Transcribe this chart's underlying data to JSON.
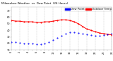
{
  "title_left": "Milwaukee Weather",
  "title_mid": "Outdoor Temp",
  "title_sep": "vs",
  "title_right": "Dew Point",
  "title_sub": "(24 Hours)",
  "bg_color": "#ffffff",
  "temp_color": "#ff0000",
  "dew_color": "#0000ff",
  "legend_temp": "Outdoor Temp",
  "legend_dew": "Dew Point",
  "ylim": [
    10,
    75
  ],
  "xlim": [
    0,
    24
  ],
  "hours": [
    0,
    1,
    2,
    3,
    4,
    5,
    6,
    7,
    8,
    9,
    10,
    11,
    12,
    13,
    14,
    15,
    16,
    17,
    18,
    19,
    20,
    21,
    22,
    23,
    24
  ],
  "temp": [
    55,
    54,
    54,
    53,
    53,
    53,
    52,
    52,
    53,
    53,
    54,
    55,
    56,
    56,
    55,
    53,
    50,
    46,
    42,
    40,
    38,
    36,
    35,
    34,
    33
  ],
  "dew": [
    22,
    22,
    21,
    20,
    20,
    20,
    19,
    19,
    20,
    22,
    25,
    28,
    32,
    35,
    37,
    37,
    36,
    35,
    34,
    33,
    32,
    32,
    33,
    34,
    35
  ],
  "grid_color": "#999999",
  "title_fontsize": 3.0,
  "tick_fontsize": 2.5,
  "legend_fontsize": 2.8,
  "line_width": 0.7,
  "marker_size": 1.0,
  "dpi": 100
}
